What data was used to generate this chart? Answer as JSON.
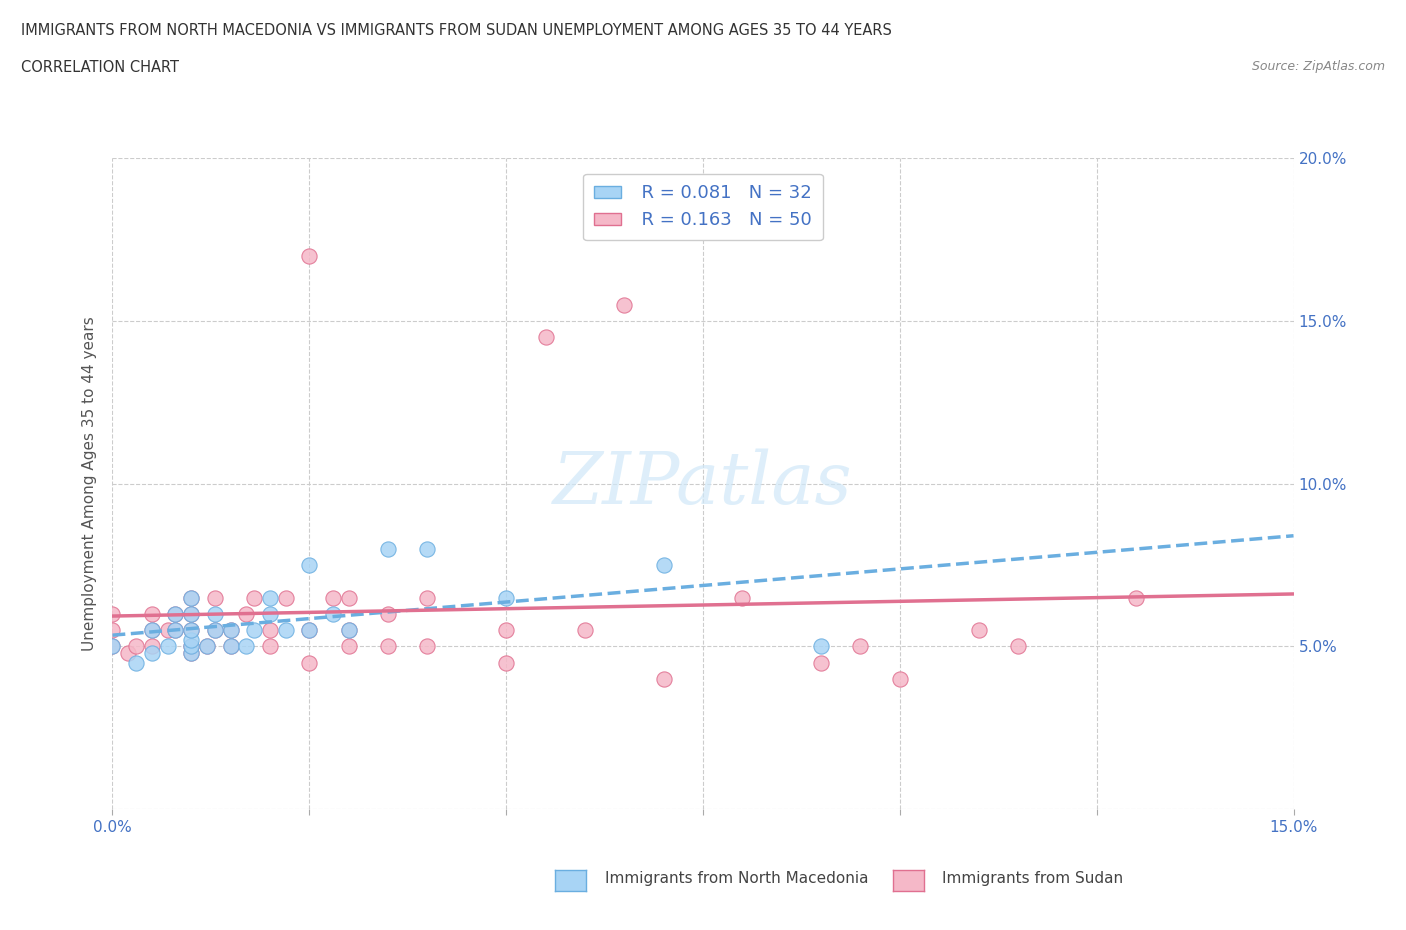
{
  "title_line1": "IMMIGRANTS FROM NORTH MACEDONIA VS IMMIGRANTS FROM SUDAN UNEMPLOYMENT AMONG AGES 35 TO 44 YEARS",
  "title_line2": "CORRELATION CHART",
  "source_text": "Source: ZipAtlas.com",
  "ylabel": "Unemployment Among Ages 35 to 44 years",
  "xlim": [
    0.0,
    0.15
  ],
  "ylim": [
    0.0,
    0.2
  ],
  "xticks": [
    0.0,
    0.025,
    0.05,
    0.075,
    0.1,
    0.125,
    0.15
  ],
  "xtick_labels": [
    "0.0%",
    "",
    "",
    "",
    "",
    "",
    "15.0%"
  ],
  "yticks": [
    0.0,
    0.05,
    0.1,
    0.15,
    0.2
  ],
  "ytick_labels_right": [
    "",
    "5.0%",
    "10.0%",
    "15.0%",
    "20.0%"
  ],
  "legend_r1": "R = 0.081",
  "legend_n1": "N = 32",
  "legend_r2": "R = 0.163",
  "legend_n2": "N = 50",
  "series1_color": "#a8d4f5",
  "series1_edge_color": "#6aaee0",
  "series2_color": "#f5b8c8",
  "series2_edge_color": "#e07090",
  "trendline1_color": "#6aaee0",
  "trendline2_color": "#e07090",
  "watermark_color": "#d0e8f8",
  "series1_x": [
    0.0,
    0.003,
    0.005,
    0.005,
    0.007,
    0.008,
    0.008,
    0.01,
    0.01,
    0.01,
    0.01,
    0.01,
    0.01,
    0.012,
    0.013,
    0.013,
    0.015,
    0.015,
    0.017,
    0.018,
    0.02,
    0.02,
    0.022,
    0.025,
    0.025,
    0.028,
    0.03,
    0.035,
    0.04,
    0.05,
    0.07,
    0.09
  ],
  "series1_y": [
    0.05,
    0.045,
    0.048,
    0.055,
    0.05,
    0.055,
    0.06,
    0.048,
    0.05,
    0.052,
    0.055,
    0.06,
    0.065,
    0.05,
    0.055,
    0.06,
    0.05,
    0.055,
    0.05,
    0.055,
    0.06,
    0.065,
    0.055,
    0.055,
    0.075,
    0.06,
    0.055,
    0.08,
    0.08,
    0.065,
    0.075,
    0.05
  ],
  "series2_x": [
    0.0,
    0.0,
    0.0,
    0.002,
    0.003,
    0.005,
    0.005,
    0.005,
    0.007,
    0.008,
    0.008,
    0.01,
    0.01,
    0.01,
    0.01,
    0.01,
    0.012,
    0.013,
    0.013,
    0.015,
    0.015,
    0.017,
    0.018,
    0.02,
    0.02,
    0.022,
    0.025,
    0.025,
    0.025,
    0.028,
    0.03,
    0.03,
    0.03,
    0.035,
    0.035,
    0.04,
    0.04,
    0.05,
    0.05,
    0.055,
    0.06,
    0.065,
    0.07,
    0.08,
    0.09,
    0.095,
    0.1,
    0.11,
    0.115,
    0.13
  ],
  "series2_y": [
    0.05,
    0.055,
    0.06,
    0.048,
    0.05,
    0.05,
    0.055,
    0.06,
    0.055,
    0.055,
    0.06,
    0.048,
    0.05,
    0.055,
    0.06,
    0.065,
    0.05,
    0.055,
    0.065,
    0.05,
    0.055,
    0.06,
    0.065,
    0.05,
    0.055,
    0.065,
    0.045,
    0.055,
    0.17,
    0.065,
    0.05,
    0.055,
    0.065,
    0.05,
    0.06,
    0.05,
    0.065,
    0.045,
    0.055,
    0.145,
    0.055,
    0.155,
    0.04,
    0.065,
    0.045,
    0.05,
    0.04,
    0.055,
    0.05,
    0.065
  ]
}
